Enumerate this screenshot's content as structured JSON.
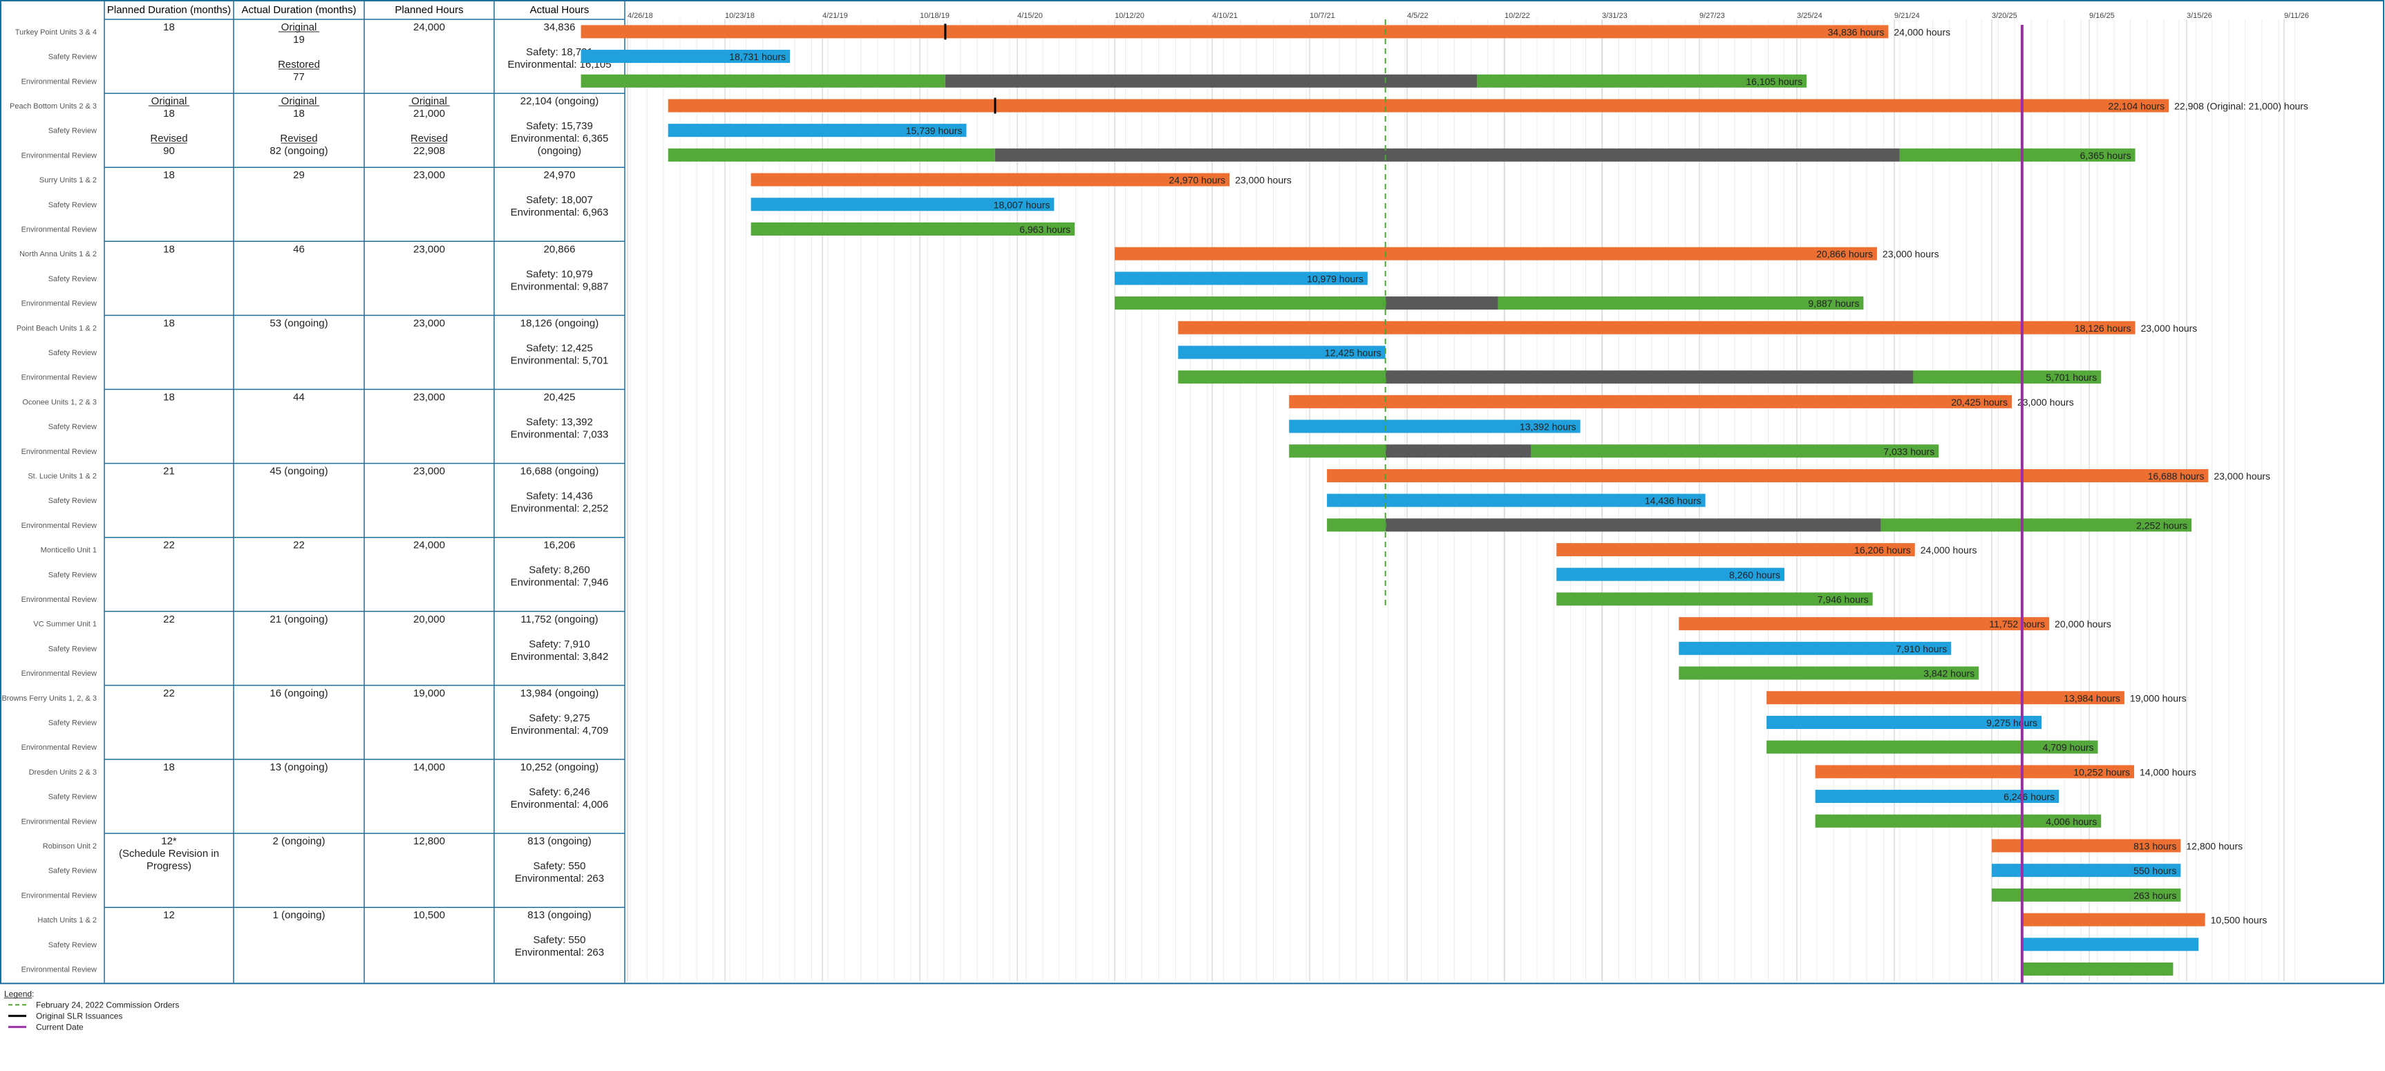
{
  "table": {
    "columns": [
      "Planned Duration (months)",
      "Actual Duration (months)",
      "Planned Hours",
      "Actual Hours"
    ],
    "groups": [
      {
        "name": "Turkey Point Units 3 & 4",
        "planned_duration": [
          "18"
        ],
        "actual_duration": [
          {
            "t": "Original",
            "u": true
          },
          {
            "t": "19"
          },
          {
            "t": ""
          },
          {
            "t": "Restored",
            "u": true
          },
          {
            "t": "77"
          }
        ],
        "planned_hours": [
          "24,000"
        ],
        "actual_hours": [
          "34,836",
          "",
          "Safety: 18,731",
          "Environmental: 16,105"
        ]
      },
      {
        "name": "Peach Bottom Units 2 & 3",
        "planned_duration": [
          {
            "t": "Original",
            "u": true
          },
          {
            "t": "18"
          },
          {
            "t": ""
          },
          {
            "t": "Revised",
            "u": true
          },
          {
            "t": "90"
          }
        ],
        "actual_duration": [
          {
            "t": "Original",
            "u": true
          },
          {
            "t": "18"
          },
          {
            "t": ""
          },
          {
            "t": "Revised",
            "u": true
          },
          {
            "t": "82 (ongoing)"
          }
        ],
        "planned_hours": [
          {
            "t": "Original",
            "u": true
          },
          {
            "t": "21,000"
          },
          {
            "t": ""
          },
          {
            "t": "Revised",
            "u": true
          },
          {
            "t": "22,908"
          }
        ],
        "actual_hours": [
          "22,104 (ongoing)",
          "",
          "Safety: 15,739",
          "Environmental: 6,365",
          "(ongoing)"
        ]
      },
      {
        "name": "Surry Units 1 & 2",
        "planned_duration": [
          "18"
        ],
        "actual_duration": [
          "29"
        ],
        "planned_hours": [
          "23,000"
        ],
        "actual_hours": [
          "24,970",
          "",
          "Safety: 18,007",
          "Environmental: 6,963"
        ]
      },
      {
        "name": "North Anna Units 1 & 2",
        "planned_duration": [
          "18"
        ],
        "actual_duration": [
          "46"
        ],
        "planned_hours": [
          "23,000"
        ],
        "actual_hours": [
          "20,866",
          "",
          "Safety: 10,979",
          "Environmental: 9,887"
        ]
      },
      {
        "name": "Point Beach Units 1 & 2",
        "planned_duration": [
          "18"
        ],
        "actual_duration": [
          "53 (ongoing)"
        ],
        "planned_hours": [
          "23,000"
        ],
        "actual_hours": [
          "18,126 (ongoing)",
          "",
          "Safety: 12,425",
          "Environmental: 5,701"
        ]
      },
      {
        "name": "Oconee Units 1, 2 & 3",
        "planned_duration": [
          "18"
        ],
        "actual_duration": [
          "44"
        ],
        "planned_hours": [
          "23,000"
        ],
        "actual_hours": [
          "20,425",
          "",
          "Safety: 13,392",
          "Environmental: 7,033"
        ]
      },
      {
        "name": "St. Lucie Units 1 & 2",
        "planned_duration": [
          "21"
        ],
        "actual_duration": [
          "45 (ongoing)"
        ],
        "planned_hours": [
          "23,000"
        ],
        "actual_hours": [
          "16,688 (ongoing)",
          "",
          "Safety: 14,436",
          "Environmental: 2,252"
        ]
      },
      {
        "name": "Monticello Unit 1",
        "planned_duration": [
          "22"
        ],
        "actual_duration": [
          "22"
        ],
        "planned_hours": [
          "24,000"
        ],
        "actual_hours": [
          "16,206",
          "",
          "Safety: 8,260",
          "Environmental: 7,946"
        ]
      },
      {
        "name": "VC Summer Unit 1",
        "planned_duration": [
          "22"
        ],
        "actual_duration": [
          "21 (ongoing)"
        ],
        "planned_hours": [
          "20,000"
        ],
        "actual_hours": [
          "11,752 (ongoing)",
          "",
          "Safety: 7,910",
          "Environmental: 3,842"
        ]
      },
      {
        "name": "Browns Ferry Units 1, 2, & 3",
        "planned_duration": [
          "22"
        ],
        "actual_duration": [
          "16 (ongoing)"
        ],
        "planned_hours": [
          "19,000"
        ],
        "actual_hours": [
          "13,984 (ongoing)",
          "",
          "Safety: 9,275",
          "Environmental: 4,709"
        ]
      },
      {
        "name": "Dresden Units 2 & 3",
        "planned_duration": [
          "18"
        ],
        "actual_duration": [
          "13 (ongoing)"
        ],
        "planned_hours": [
          "14,000"
        ],
        "actual_hours": [
          "10,252 (ongoing)",
          "",
          "Safety: 6,246",
          "Environmental: 4,006"
        ]
      },
      {
        "name": "Robinson Unit 2",
        "planned_duration": [
          "12*",
          "(Schedule Revision in",
          "Progress)"
        ],
        "actual_duration": [
          "2 (ongoing)"
        ],
        "planned_hours": [
          "12,800"
        ],
        "actual_hours": [
          "813 (ongoing)",
          "",
          "Safety: 550",
          "Environmental: 263"
        ]
      },
      {
        "name": "Hatch Units 1 & 2",
        "planned_duration": [
          "12"
        ],
        "actual_duration": [
          "1 (ongoing)"
        ],
        "planned_hours": [
          "10,500"
        ],
        "actual_hours": [
          "813 (ongoing)",
          "",
          "Safety: 550",
          "Environmental: 263"
        ]
      }
    ]
  },
  "legend": {
    "title": "Legend:",
    "items": [
      {
        "label": "February 24, 2022 Commission Orders",
        "style": "dashed",
        "color": "#4aa832"
      },
      {
        "label": "Original SLR Issuances",
        "style": "solid",
        "color": "#000000"
      },
      {
        "label": "Current Date",
        "style": "solid",
        "color": "#9a2fa5"
      }
    ]
  },
  "colors": {
    "total": "#ed7032",
    "safety": "#20a0dc",
    "environmental": "#54a93a",
    "pause": "#595959",
    "current_date": "#9a2fa5",
    "commission": "#4aa832",
    "border": "#1f6f9d"
  },
  "chart_data": {
    "type": "gantt",
    "x_axis": {
      "type": "date",
      "min": "2018-04-26",
      "max": "2026-09-11",
      "ticks": [
        "2018-04-26",
        "2018-10-23",
        "2019-04-21",
        "2019-10-18",
        "2020-04-15",
        "2020-10-12",
        "2021-04-10",
        "2021-10-07",
        "2022-04-05",
        "2022-10-02",
        "2023-03-31",
        "2023-09-27",
        "2024-03-25",
        "2024-09-21",
        "2025-03-20",
        "2025-09-16",
        "2026-03-15",
        "2026-09-11"
      ],
      "tick_labels": [
        "4/26/18",
        "10/23/18",
        "4/21/19",
        "10/18/19",
        "4/15/20",
        "10/12/20",
        "4/10/21",
        "10/7/21",
        "4/5/22",
        "10/2/22",
        "3/31/23",
        "9/27/23",
        "3/25/24",
        "9/21/24",
        "3/20/25",
        "9/16/25",
        "3/15/26",
        "9/11/26"
      ],
      "grid": true
    },
    "markers": {
      "commission_orders": "2022-02-24",
      "current_date": "2025-05-15"
    },
    "series_names": [
      "Safety Review",
      "Environmental Review"
    ],
    "hours_unit": "hours",
    "projects": [
      {
        "name": "Turkey Point Units 3 & 4",
        "slr_issuance": "2019-12-04",
        "total": {
          "start": "2018-01-30",
          "end": "2024-09-10",
          "label": "34,836",
          "planned": "24,000"
        },
        "safety": {
          "start": "2018-01-30",
          "end": "2019-02-20",
          "label": "18,731"
        },
        "env": [
          {
            "start": "2018-01-30",
            "end": "2019-12-04",
            "kind": "active"
          },
          {
            "start": "2019-12-04",
            "end": "2022-08-12",
            "kind": "pause"
          },
          {
            "start": "2022-08-12",
            "end": "2024-04-12",
            "kind": "active"
          }
        ],
        "env_label": "16,105"
      },
      {
        "name": "Peach Bottom Units 2 & 3",
        "slr_issuance": "2020-03-05",
        "total": {
          "start": "2018-07-10",
          "end": "2026-02-10",
          "label": "22,104",
          "planned": "22,908 (Original: 21,000)"
        },
        "safety": {
          "start": "2018-07-10",
          "end": "2020-01-12",
          "label": "15,739"
        },
        "env": [
          {
            "start": "2018-07-10",
            "end": "2020-03-05",
            "kind": "active"
          },
          {
            "start": "2020-03-05",
            "end": "2024-10-01",
            "kind": "pause"
          },
          {
            "start": "2024-10-01",
            "end": "2025-12-10",
            "kind": "active"
          }
        ],
        "env_label": "6,365"
      },
      {
        "name": "Surry Units 1 & 2",
        "total": {
          "start": "2018-12-10",
          "end": "2021-05-12",
          "label": "24,970",
          "planned": "23,000"
        },
        "safety": {
          "start": "2018-12-10",
          "end": "2020-06-22",
          "label": "18,007"
        },
        "env": [
          {
            "start": "2018-12-10",
            "end": "2020-07-30",
            "kind": "active"
          }
        ],
        "env_label": "6,963"
      },
      {
        "name": "North Anna Units 1 & 2",
        "total": {
          "start": "2020-10-12",
          "end": "2024-08-20",
          "label": "20,866",
          "planned": "23,000"
        },
        "safety": {
          "start": "2020-10-12",
          "end": "2022-01-22",
          "label": "10,979"
        },
        "env": [
          {
            "start": "2020-10-12",
            "end": "2022-02-24",
            "kind": "active"
          },
          {
            "start": "2022-02-24",
            "end": "2022-09-20",
            "kind": "pause"
          },
          {
            "start": "2022-09-20",
            "end": "2024-07-26",
            "kind": "active"
          }
        ],
        "env_label": "9,887"
      },
      {
        "name": "Point Beach Units 1 & 2",
        "total": {
          "start": "2021-02-06",
          "end": "2025-12-10",
          "label": "18,126",
          "planned": "23,000"
        },
        "safety": {
          "start": "2021-02-06",
          "end": "2022-02-24",
          "label": "12,425"
        },
        "env": [
          {
            "start": "2021-02-06",
            "end": "2022-02-24",
            "kind": "active"
          },
          {
            "start": "2022-02-24",
            "end": "2024-10-26",
            "kind": "pause"
          },
          {
            "start": "2024-10-26",
            "end": "2025-10-08",
            "kind": "active"
          }
        ],
        "env_label": "5,701"
      },
      {
        "name": "Oconee Units 1, 2 & 3",
        "total": {
          "start": "2021-08-30",
          "end": "2025-04-26",
          "label": "20,425",
          "planned": "23,000"
        },
        "safety": {
          "start": "2021-08-30",
          "end": "2023-02-19",
          "label": "13,392"
        },
        "env": [
          {
            "start": "2021-08-30",
            "end": "2022-02-24",
            "kind": "active"
          },
          {
            "start": "2022-02-24",
            "end": "2022-11-20",
            "kind": "pause"
          },
          {
            "start": "2022-11-20",
            "end": "2024-12-12",
            "kind": "active"
          }
        ],
        "env_label": "7,033"
      },
      {
        "name": "St. Lucie Units 1 & 2",
        "total": {
          "start": "2021-11-08",
          "end": "2026-04-24",
          "label": "16,688",
          "planned": "23,000"
        },
        "safety": {
          "start": "2021-11-08",
          "end": "2023-10-08",
          "label": "14,436"
        },
        "env": [
          {
            "start": "2021-11-08",
            "end": "2022-02-24",
            "kind": "active"
          },
          {
            "start": "2022-02-24",
            "end": "2024-08-27",
            "kind": "pause"
          },
          {
            "start": "2024-08-27",
            "end": "2026-03-24",
            "kind": "active"
          }
        ],
        "env_label": "2,252"
      },
      {
        "name": "Monticello Unit 1",
        "total": {
          "start": "2023-01-06",
          "end": "2024-10-29",
          "label": "16,206",
          "planned": "24,000"
        },
        "safety": {
          "start": "2023-01-06",
          "end": "2024-03-02",
          "label": "8,260"
        },
        "env": [
          {
            "start": "2023-01-06",
            "end": "2024-08-12",
            "kind": "active"
          }
        ],
        "env_label": "7,946"
      },
      {
        "name": "VC Summer Unit 1",
        "total": {
          "start": "2023-08-20",
          "end": "2025-07-04",
          "label": "11,752",
          "planned": "20,000"
        },
        "safety": {
          "start": "2023-08-20",
          "end": "2025-01-04",
          "label": "7,910"
        },
        "env": [
          {
            "start": "2023-08-20",
            "end": "2025-02-24",
            "kind": "active"
          }
        ],
        "env_label": "3,842"
      },
      {
        "name": "Browns Ferry Units 1, 2, & 3",
        "total": {
          "start": "2024-01-29",
          "end": "2025-11-20",
          "label": "13,984",
          "planned": "19,000"
        },
        "safety": {
          "start": "2024-01-29",
          "end": "2025-06-20",
          "label": "9,275"
        },
        "env": [
          {
            "start": "2024-01-29",
            "end": "2025-10-02",
            "kind": "active"
          }
        ],
        "env_label": "4,709"
      },
      {
        "name": "Dresden Units 2 & 3",
        "total": {
          "start": "2024-04-28",
          "end": "2025-12-08",
          "label": "10,252",
          "planned": "14,000"
        },
        "safety": {
          "start": "2024-04-28",
          "end": "2025-07-22",
          "label": "6,246"
        },
        "env": [
          {
            "start": "2024-04-28",
            "end": "2025-10-08",
            "kind": "active"
          }
        ],
        "env_label": "4,006"
      },
      {
        "name": "Robinson Unit 2",
        "total": {
          "start": "2025-03-20",
          "end": "2026-03-04",
          "label": "813",
          "planned": "12,800"
        },
        "safety": {
          "start": "2025-03-20",
          "end": "2026-03-04",
          "label": "550"
        },
        "env": [
          {
            "start": "2025-03-20",
            "end": "2026-03-04",
            "kind": "active"
          }
        ],
        "env_label": "263"
      },
      {
        "name": "Hatch Units 1 & 2",
        "total": {
          "start": "2025-05-15",
          "end": "2026-04-18",
          "label": "",
          "planned": "10,500"
        },
        "safety": {
          "start": "2025-05-15",
          "end": "2026-04-06",
          "label": ""
        },
        "env": [
          {
            "start": "2025-05-15",
            "end": "2026-02-18",
            "kind": "active"
          }
        ],
        "env_label": ""
      }
    ]
  }
}
